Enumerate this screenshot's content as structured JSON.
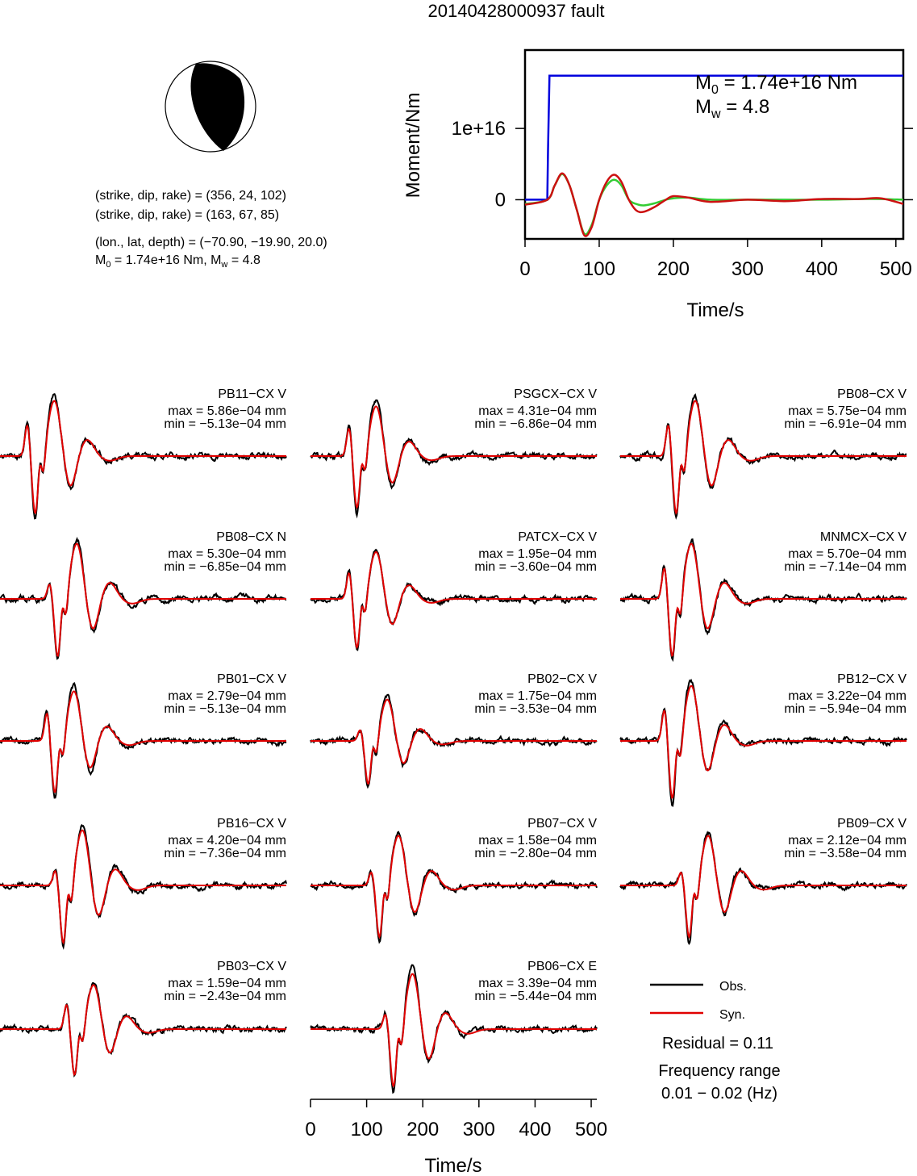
{
  "title": "20140428000937 fault",
  "mechanism": {
    "lines": [
      "(strike, dip, rake) = (356, 24, 102)",
      "(strike, dip, rake) = (163, 67, 85)",
      "(lon., lat, depth) = (−70.90, −19.90, 20.0)"
    ],
    "m0_line": {
      "prefix": "M",
      "sub0": "0",
      "mid": " = 1.74e+16 Nm, M",
      "sub1": "w",
      "suffix": " = 4.8"
    }
  },
  "colors": {
    "obs": "#000000",
    "syn": "#e00000",
    "stf_moment": "#0000dd",
    "stf_rate": "#33cc33",
    "stf_rate_fit": "#cc1111"
  },
  "chart_data": [
    {
      "type": "line",
      "title": "",
      "xlabel": "Time/s",
      "ylabel": "Moment/Nm",
      "xlim": [
        0,
        510
      ],
      "ylim": [
        -5500000000000000.0,
        2.1e+16
      ],
      "xticks": [
        "0",
        "100",
        "200",
        "300",
        "400",
        "500"
      ],
      "yticks": [
        "0",
        "1e+16"
      ],
      "annotation": {
        "m0_prefix": "M",
        "m0_sub": "0",
        "m0_value": " = 1.74e+16 Nm",
        "mw_prefix": "M",
        "mw_sub": "w",
        "mw_value": " = 4.8"
      },
      "series": [
        {
          "color": "#0000dd",
          "x": [
            0,
            30,
            31,
            33,
            510
          ],
          "y": [
            0,
            0,
            7000000000000000.0,
            1.74e+16,
            1.74e+16
          ]
        },
        {
          "color": "#33cc33",
          "x": [
            0,
            30,
            40,
            50,
            60,
            70,
            80,
            90,
            100,
            110,
            120,
            130,
            140,
            150,
            160,
            175,
            190,
            200,
            220,
            250,
            300,
            350,
            400,
            450,
            480,
            510
          ],
          "y": [
            -600000000000000.0,
            0,
            2000000000000000.0,
            3600000000000000.0,
            2000000000000000.0,
            -1500000000000000.0,
            -4800000000000000.0,
            -3500000000000000.0,
            0,
            2000000000000000.0,
            2800000000000000.0,
            2000000000000000.0,
            0,
            -600000000000000.0,
            -800000000000000.0,
            -500000000000000.0,
            0,
            200000000000000.0,
            300000000000000.0,
            0,
            0,
            0,
            0,
            100000000000000.0,
            100000000000000.0,
            0
          ]
        },
        {
          "color": "#cc1111",
          "x": [
            0,
            30,
            40,
            50,
            60,
            70,
            80,
            90,
            100,
            110,
            120,
            130,
            140,
            150,
            160,
            175,
            190,
            200,
            220,
            250,
            300,
            350,
            400,
            450,
            480,
            510
          ],
          "y": [
            -700000000000000.0,
            0,
            2000000000000000.0,
            3700000000000000.0,
            2000000000000000.0,
            -1500000000000000.0,
            -5000000000000000.0,
            -3800000000000000.0,
            0,
            2500000000000000.0,
            3500000000000000.0,
            2500000000000000.0,
            0,
            -1500000000000000.0,
            -1700000000000000.0,
            -1000000000000000.0,
            0,
            500000000000000.0,
            300000000000000.0,
            -300000000000000.0,
            0,
            -200000000000000.0,
            100000000000000.0,
            100000000000000.0,
            200000000000000.0,
            -600000000000000.0
          ]
        }
      ]
    },
    {
      "type": "line",
      "xlabel": "Time/s",
      "xlim": [
        0,
        510
      ],
      "xticks": [
        "0",
        "100",
        "200",
        "300",
        "400",
        "500"
      ],
      "legend": {
        "obs": "Obs.",
        "syn": "Syn."
      },
      "residual": "Residual = 0.11",
      "frequency_label": "Frequency range",
      "frequency_value": "0.01 − 0.02 (Hz)",
      "stations": [
        {
          "name": "PB11−CX V",
          "max": "max = 5.86e−04 mm",
          "min": "min = −5.13e−04 mm",
          "t0": 55,
          "amp": 1.0,
          "sharp": 0.8
        },
        {
          "name": "PSGCX−CX V",
          "max": "max = 4.31e−04 mm",
          "min": "min = −6.86e−04 mm",
          "t0": 75,
          "amp": 0.9,
          "sharp": 0.7
        },
        {
          "name": "PB08−CX V",
          "max": "max = 5.75e−04 mm",
          "min": "min = −6.91e−04 mm",
          "t0": 92,
          "amp": 1.0,
          "sharp": 0.8
        },
        {
          "name": "PB08−CX N",
          "max": "max = 5.30e−04 mm",
          "min": "min = −6.85e−04 mm",
          "t0": 95,
          "amp": 1.0,
          "sharp": 0.4
        },
        {
          "name": "PATCX−CX V",
          "max": "max = 1.95e−04 mm",
          "min": "min = −3.60e−04 mm",
          "t0": 75,
          "amp": 0.85,
          "sharp": 0.7
        },
        {
          "name": "MNMCX−CX V",
          "max": "max = 5.70e−04 mm",
          "min": "min = −7.14e−04 mm",
          "t0": 85,
          "amp": 1.0,
          "sharp": 0.8
        },
        {
          "name": "PB01−CX V",
          "max": "max = 2.79e−04 mm",
          "min": "min = −5.13e−04 mm",
          "t0": 90,
          "amp": 0.9,
          "sharp": 0.7
        },
        {
          "name": "PB02−CX V",
          "max": "max = 1.75e−04 mm",
          "min": "min = −3.53e−04 mm",
          "t0": 95,
          "amp": 0.75,
          "sharp": 0.6
        },
        {
          "name": "PB12−CX V",
          "max": "max = 3.22e−04 mm",
          "min": "min = −5.94e−04 mm",
          "t0": 85,
          "amp": 1.0,
          "sharp": 0.7
        },
        {
          "name": "PB16−CX V",
          "max": "max = 4.20e−04 mm",
          "min": "min = −7.36e−04 mm",
          "t0": 105,
          "amp": 1.0,
          "sharp": 0.6
        },
        {
          "name": "PB07−CX V",
          "max": "max = 1.58e−04 mm",
          "min": "min = −2.80e−04 mm",
          "t0": 115,
          "amp": 0.9,
          "sharp": 0.6
        },
        {
          "name": "PB09−CX V",
          "max": "max = 2.12e−04 mm",
          "min": "min = −3.58e−04 mm",
          "t0": 115,
          "amp": 0.9,
          "sharp": 0.6
        },
        {
          "name": "PB03−CX V",
          "max": "max = 1.59e−04 mm",
          "min": "min = −2.43e−04 mm",
          "t0": 125,
          "amp": 0.8,
          "sharp": 0.7
        },
        {
          "name": "PB06−CX E",
          "max": "max = 3.39e−04 mm",
          "min": "min = −5.44e−04 mm",
          "t0": 140,
          "amp": 1.0,
          "sharp": 0.6
        }
      ]
    }
  ]
}
